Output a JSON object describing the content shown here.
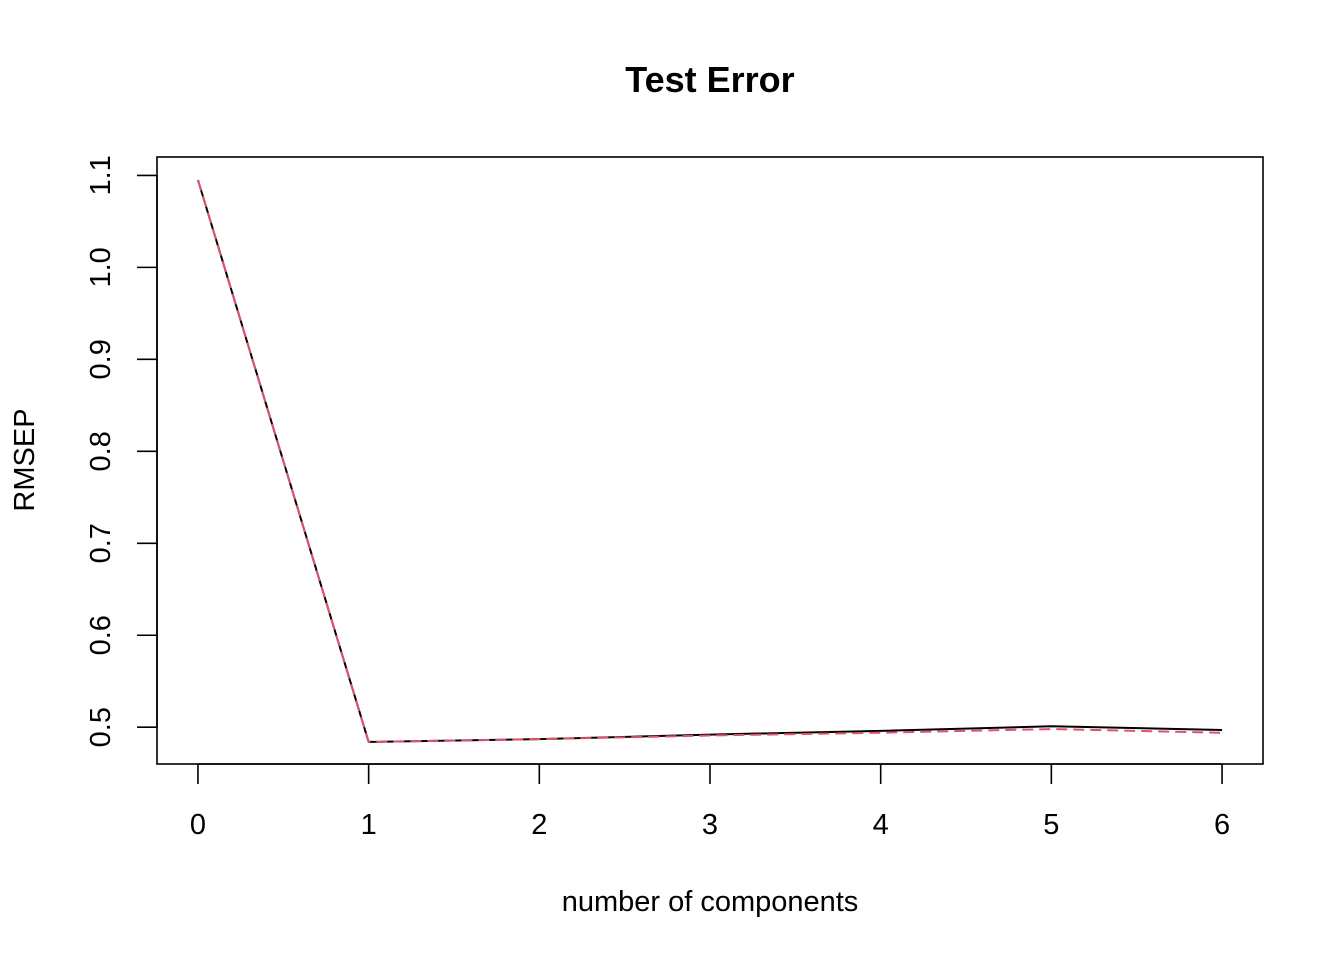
{
  "chart_data": {
    "type": "line",
    "title": "Test Error",
    "xlabel": "number of components",
    "ylabel": "RMSEP",
    "x": [
      0,
      1,
      2,
      3,
      4,
      5,
      6
    ],
    "xlim": [
      -0.24,
      6.24
    ],
    "ylim": [
      0.46,
      1.12
    ],
    "xticks": [
      0,
      1,
      2,
      3,
      4,
      5,
      6
    ],
    "yticks": [
      0.5,
      0.6,
      0.7,
      0.8,
      0.9,
      1.0,
      1.1
    ],
    "ytick_labels": [
      "0.5",
      "0.6",
      "0.7",
      "0.8",
      "0.9",
      "1.0",
      "1.1"
    ],
    "grid": false,
    "series": [
      {
        "values": [
          1.095,
          0.484,
          0.487,
          0.492,
          0.496,
          0.501,
          0.497
        ],
        "color": "#000000",
        "style": "solid"
      },
      {
        "values": [
          1.095,
          0.484,
          0.487,
          0.491,
          0.494,
          0.498,
          0.494
        ],
        "color": "#DF536B",
        "style": "dashed"
      }
    ]
  }
}
